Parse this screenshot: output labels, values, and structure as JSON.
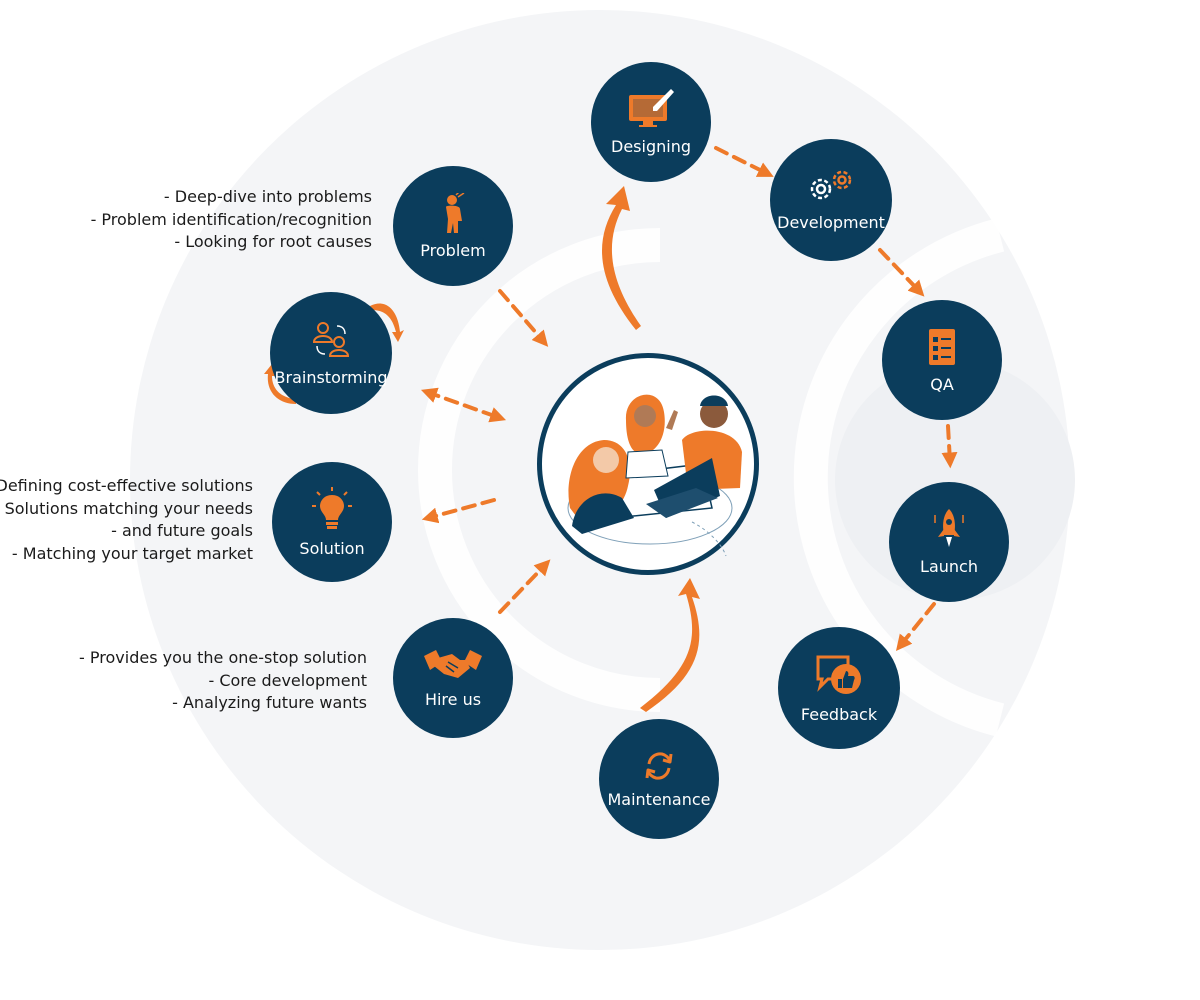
{
  "diagram": {
    "center": {
      "illustration": "team-collaboration-illustration"
    },
    "stages": [
      {
        "id": "problem",
        "label": "Problem",
        "icon": "person-thinking-icon"
      },
      {
        "id": "brainstorming",
        "label": "Brainstorming",
        "icon": "people-exchange-icon"
      },
      {
        "id": "solution",
        "label": "Solution",
        "icon": "lightbulb-icon"
      },
      {
        "id": "hire-us",
        "label": "Hire us",
        "icon": "handshake-icon"
      },
      {
        "id": "designing",
        "label": "Designing",
        "icon": "monitor-brush-icon"
      },
      {
        "id": "development",
        "label": "Development",
        "icon": "gears-icon"
      },
      {
        "id": "qa",
        "label": "QA",
        "icon": "checklist-icon"
      },
      {
        "id": "launch",
        "label": "Launch",
        "icon": "rocket-icon"
      },
      {
        "id": "feedback",
        "label": "Feedback",
        "icon": "chat-thumbs-up-icon"
      },
      {
        "id": "maintenance",
        "label": "Maintenance",
        "icon": "refresh-icon"
      }
    ],
    "notes": {
      "problem": [
        "- Deep-dive into problems",
        "- Problem identification/recognition",
        "- Looking for root causes"
      ],
      "solution": [
        "- Defining cost-effective solutions",
        "- Solutions matching your needs",
        "- and future goals",
        "- Matching your target market"
      ],
      "hire_us": [
        "- Provides you the one-stop solution",
        "- Core development",
        "- Analyzing future wants"
      ]
    },
    "colors": {
      "node": "#0b3d5c",
      "accent": "#ee7a2a",
      "node_text": "#ffffff",
      "background_shape": "#f4f5f7"
    }
  }
}
